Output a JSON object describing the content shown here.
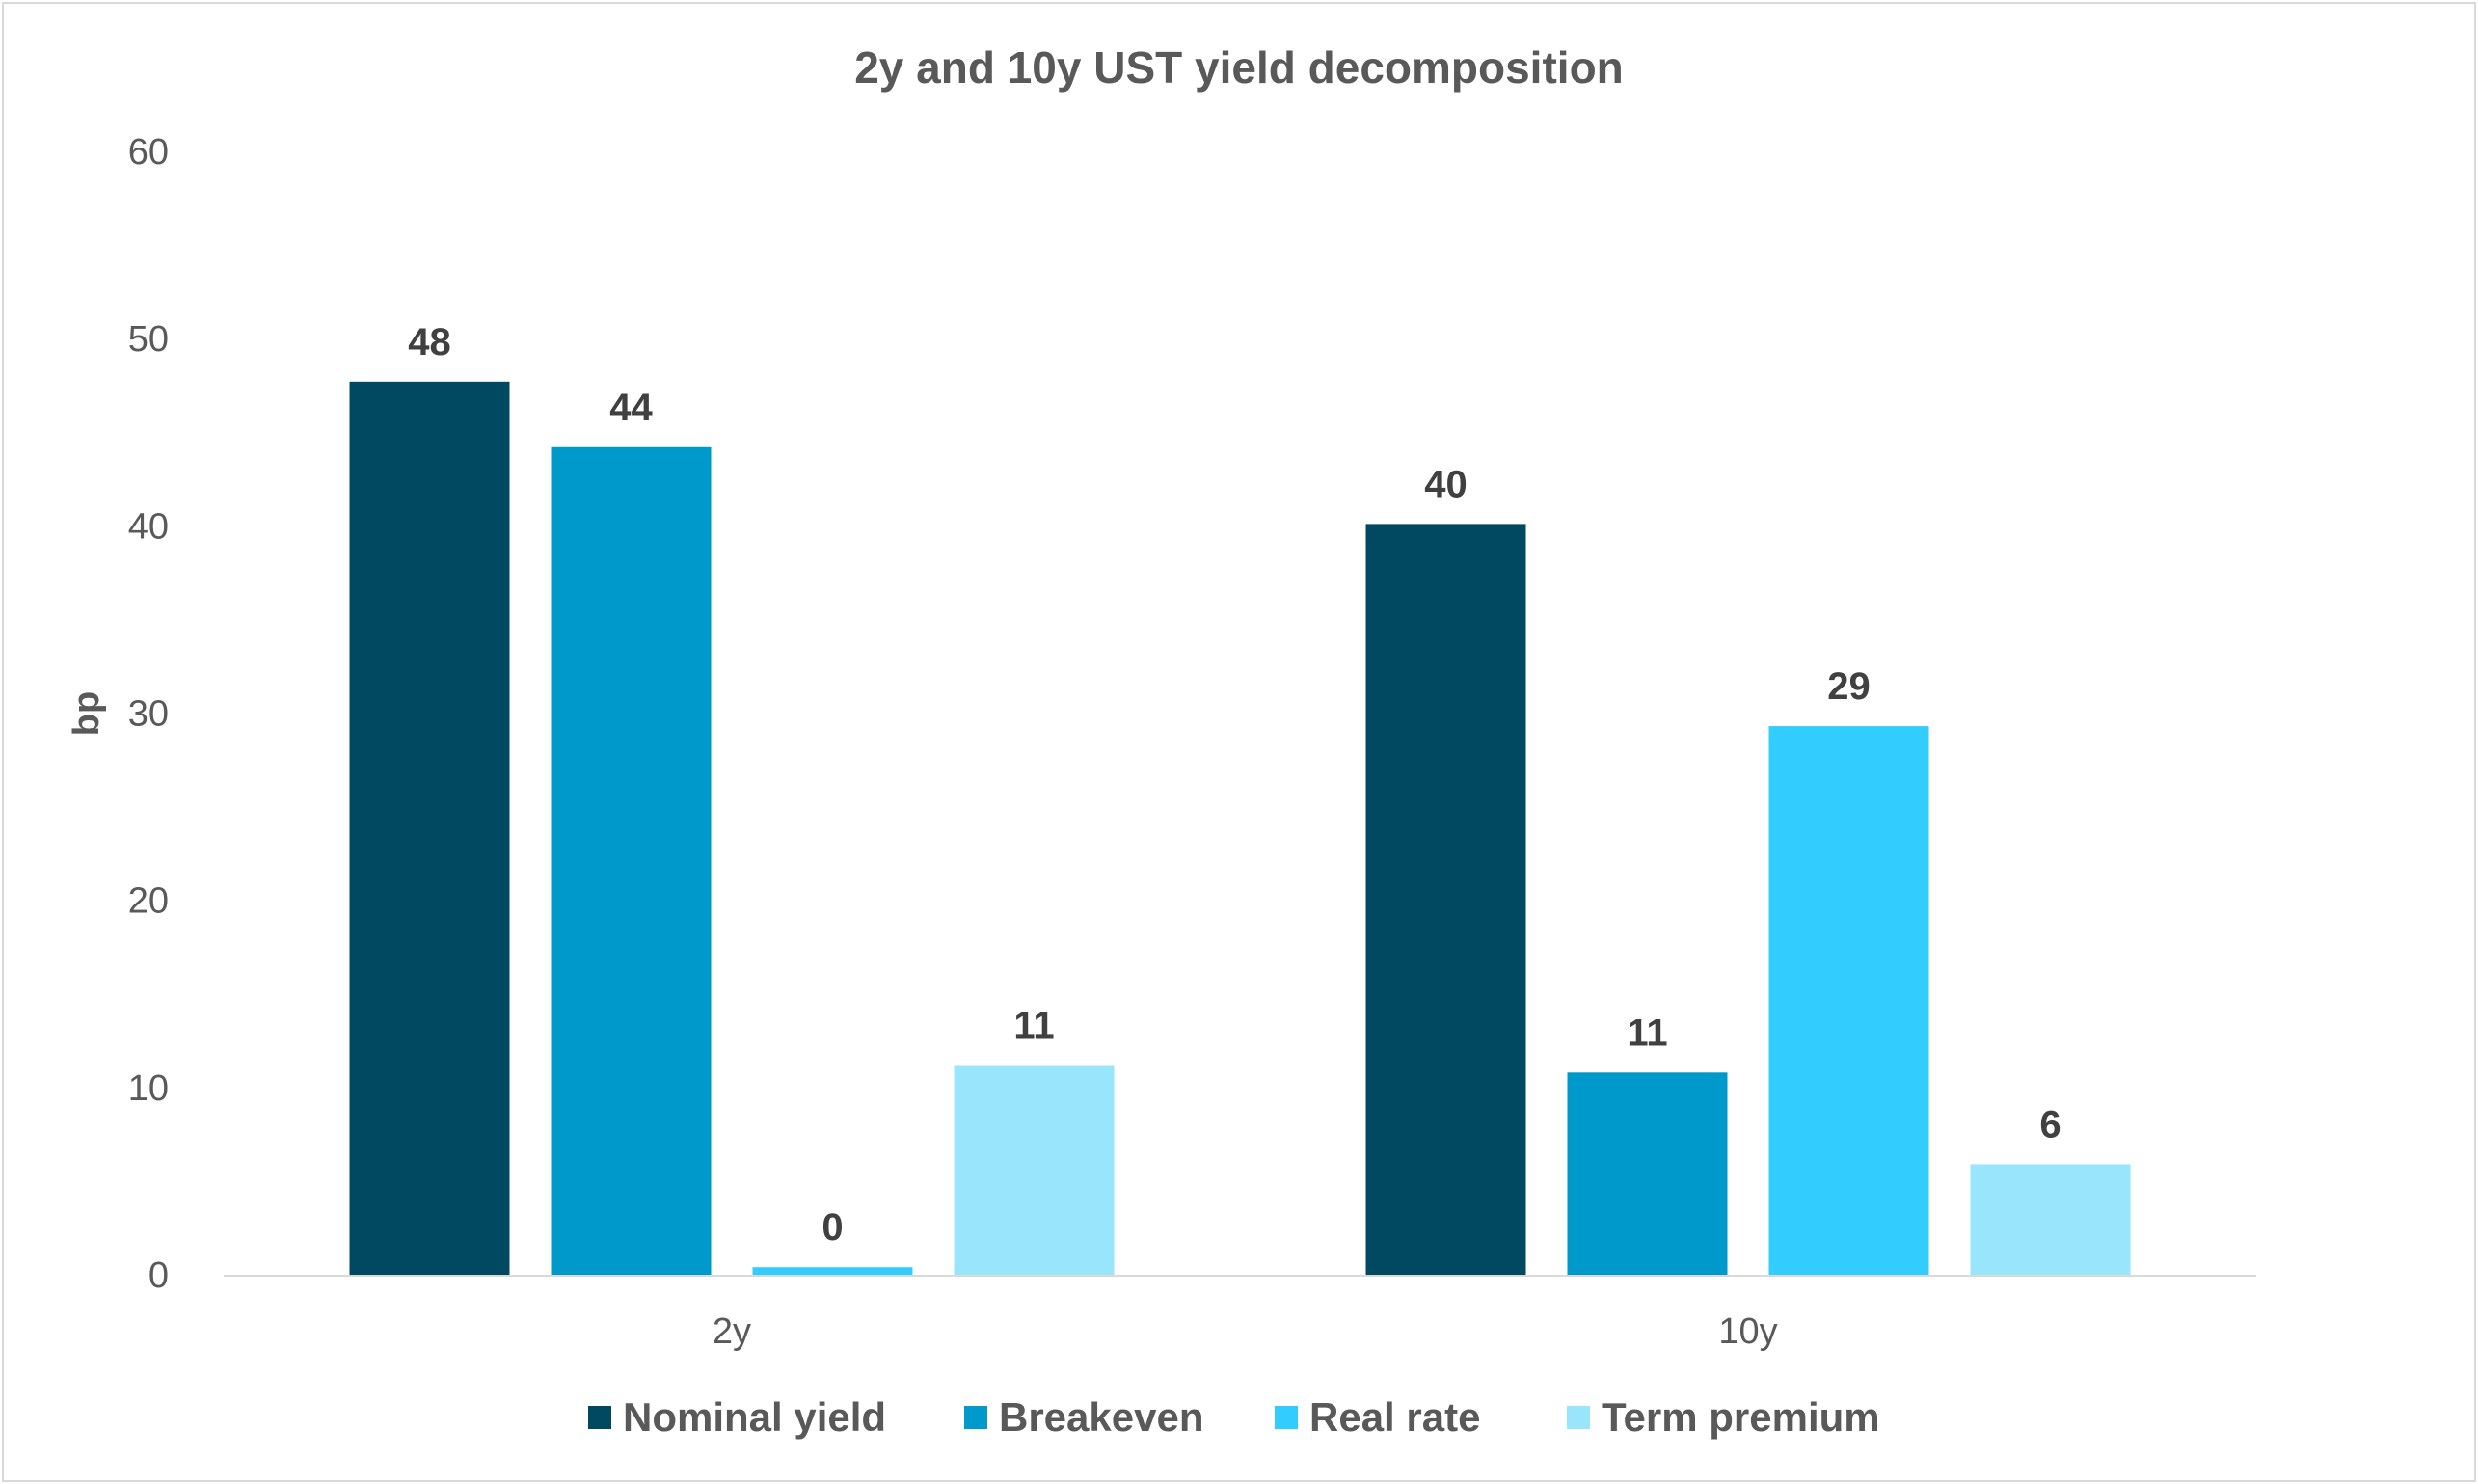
{
  "chart_data": {
    "type": "bar",
    "title": "2y and 10y UST yield decomposition",
    "xlabel": "",
    "ylabel": "bp",
    "ylim": [
      0,
      60
    ],
    "yticks": [
      0,
      10,
      20,
      30,
      40,
      50,
      60
    ],
    "categories": [
      "2y",
      "10y"
    ],
    "series": [
      {
        "name": "Nominal yield",
        "color": "#004960",
        "values": [
          47.7,
          40.1
        ],
        "labels": [
          "48",
          "40"
        ]
      },
      {
        "name": "Breakeven",
        "color": "#0099cc",
        "values": [
          44.2,
          10.8
        ],
        "labels": [
          "44",
          "11"
        ]
      },
      {
        "name": "Real rate",
        "color": "#33ccff",
        "values": [
          0.4,
          29.3
        ],
        "labels": [
          "0",
          "29"
        ]
      },
      {
        "name": "Term premium",
        "color": "#99e5fc",
        "values": [
          11.2,
          5.9
        ],
        "labels": [
          "11",
          "6"
        ]
      }
    ],
    "grid": false,
    "legend_position": "bottom",
    "axis_color": "#d9d9d9"
  }
}
